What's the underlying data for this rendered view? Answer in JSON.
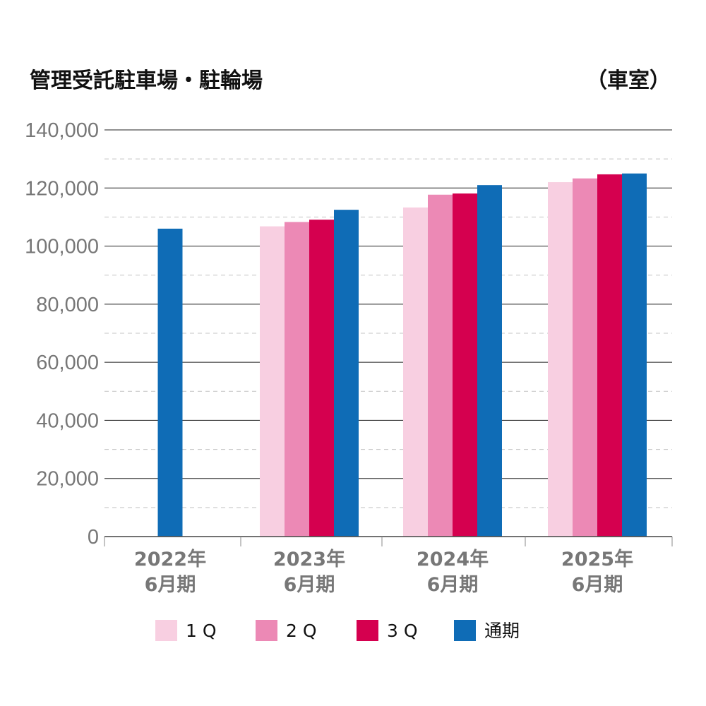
{
  "header": {
    "title": "管理受託駐車場・駐輪場",
    "unit": "（車室）"
  },
  "chart_data": {
    "type": "bar",
    "title": "管理受託駐車場・駐輪場",
    "unit": "（車室）",
    "categories": [
      [
        "2022年",
        "6月期"
      ],
      [
        "2023年",
        "6月期"
      ],
      [
        "2024年",
        "6月期"
      ],
      [
        "2025年",
        "6月期"
      ]
    ],
    "series": [
      {
        "name": "1Q",
        "legend_label": "1 Q",
        "color": "#f8cfe1",
        "values": [
          null,
          106800,
          113300,
          122000
        ]
      },
      {
        "name": "2Q",
        "legend_label": "2 Q",
        "color": "#ec89b5",
        "values": [
          null,
          108300,
          117700,
          123300
        ]
      },
      {
        "name": "3Q",
        "legend_label": "3 Q",
        "color": "#d5004f",
        "values": [
          null,
          109100,
          118100,
          124700
        ]
      },
      {
        "name": "通期",
        "legend_label": "通期",
        "color": "#0f6cb6",
        "values": [
          106000,
          112500,
          121000,
          125000
        ]
      }
    ],
    "ylim": [
      0,
      140000
    ],
    "yticks": [
      0,
      20000,
      40000,
      60000,
      80000,
      100000,
      120000,
      140000
    ],
    "ytick_labels": [
      "0",
      "20,000",
      "40,000",
      "60,000",
      "80,000",
      "100,000",
      "120,000",
      "140,000"
    ],
    "grid": {
      "major": "solid",
      "minor": "dashed",
      "minor_step": 10000
    },
    "legend_position": "bottom",
    "xlabel": "",
    "ylabel": ""
  }
}
